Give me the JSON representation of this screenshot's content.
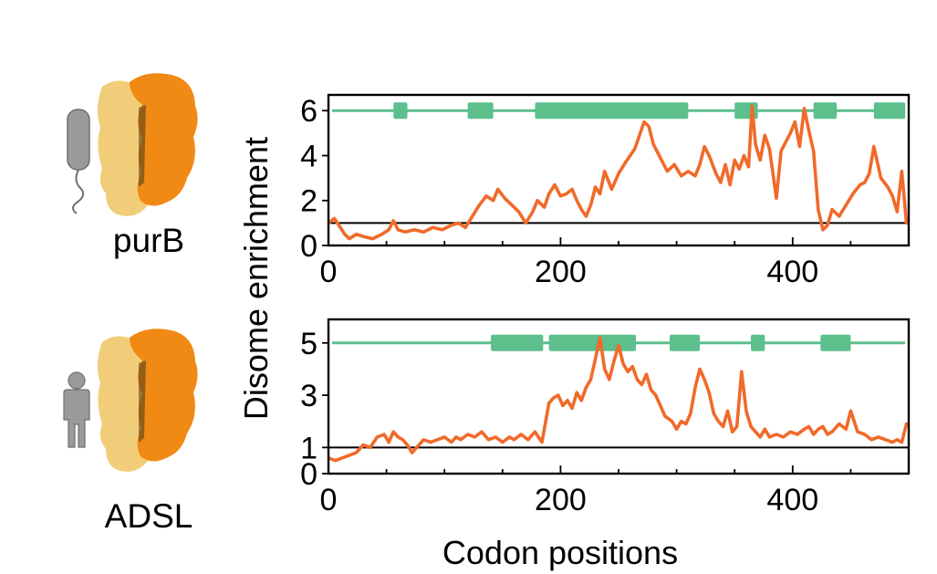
{
  "figure": {
    "ylabel": "Disome enrichment",
    "xlabel": "Codon positions",
    "colors": {
      "trace": "#f06a2a",
      "domain": "#5cbf8c",
      "baseline": "#000000",
      "protein_light": "#f2cd79",
      "protein_dark": "#f08a14",
      "silhouette": "#9a9a9a"
    }
  },
  "panels": [
    {
      "name": "purB",
      "organism_icon": "bacterium-icon"
    },
    {
      "name": "ADSL",
      "organism_icon": "human-icon"
    }
  ],
  "chart_data": [
    {
      "type": "line",
      "title": "purB",
      "xlabel": "",
      "ylabel": "Disome enrichment",
      "xlim": [
        0,
        500
      ],
      "ylim": [
        0,
        6.7
      ],
      "xticks": [
        0,
        200,
        400
      ],
      "yticks": [
        0,
        2,
        4,
        6
      ],
      "baseline": 1,
      "domain_track_y": 6,
      "domains": [
        [
          56,
          68
        ],
        [
          120,
          142
        ],
        [
          178,
          310
        ],
        [
          350,
          370
        ],
        [
          418,
          438
        ],
        [
          470,
          497
        ]
      ],
      "series": [
        {
          "x": [
            0,
            5,
            9,
            14,
            18,
            24,
            30,
            38,
            46,
            52,
            56,
            60,
            66,
            74,
            82,
            90,
            98,
            106,
            112,
            118,
            124,
            130,
            136,
            142,
            146,
            152,
            158,
            164,
            170,
            176,
            180,
            186,
            190,
            195,
            200,
            205,
            210,
            214,
            218,
            222,
            226,
            230,
            234,
            238,
            244,
            250,
            256,
            260,
            264,
            268,
            272,
            276,
            280,
            286,
            292,
            298,
            304,
            310,
            316,
            320,
            324,
            328,
            334,
            338,
            342,
            346,
            350,
            354,
            358,
            362,
            365,
            368,
            372,
            376,
            380,
            386,
            390,
            394,
            398,
            402,
            406,
            410,
            414,
            418,
            422,
            426,
            430,
            434,
            440,
            446,
            452,
            458,
            462,
            466,
            470,
            476,
            482,
            486,
            490,
            494,
            498
          ],
          "values": [
            1.0,
            1.2,
            0.9,
            0.5,
            0.3,
            0.5,
            0.4,
            0.3,
            0.5,
            0.7,
            1.1,
            0.7,
            0.6,
            0.7,
            0.6,
            0.8,
            0.7,
            0.9,
            1.0,
            0.8,
            1.3,
            1.8,
            2.2,
            2.0,
            2.5,
            2.1,
            1.8,
            1.5,
            1.0,
            1.5,
            2.0,
            1.7,
            2.3,
            2.7,
            2.2,
            2.3,
            2.5,
            2.0,
            1.6,
            1.3,
            1.8,
            2.6,
            2.3,
            3.3,
            2.5,
            3.2,
            3.7,
            4.0,
            4.3,
            4.9,
            5.5,
            5.3,
            4.5,
            3.9,
            3.3,
            3.6,
            3.1,
            3.3,
            3.1,
            3.6,
            4.4,
            4.0,
            3.2,
            2.8,
            3.6,
            2.7,
            3.8,
            3.4,
            4.0,
            3.5,
            6.2,
            4.5,
            3.8,
            4.9,
            4.3,
            2.1,
            4.2,
            4.6,
            5.0,
            5.5,
            4.4,
            6.1,
            5.1,
            4.2,
            1.6,
            0.7,
            0.9,
            1.6,
            1.3,
            1.8,
            2.3,
            2.7,
            2.8,
            3.2,
            4.4,
            3.0,
            2.6,
            2.2,
            1.5,
            3.3,
            1.0
          ]
        }
      ]
    },
    {
      "type": "line",
      "title": "ADSL",
      "xlabel": "Codon positions",
      "ylabel": "Disome enrichment",
      "xlim": [
        0,
        500
      ],
      "ylim": [
        0,
        5.9
      ],
      "xticks": [
        0,
        200,
        400
      ],
      "yticks": [
        0,
        1,
        3,
        5
      ],
      "baseline": 1,
      "domain_track_y": 5,
      "domains": [
        [
          140,
          185
        ],
        [
          190,
          265
        ],
        [
          294,
          320
        ],
        [
          364,
          376
        ],
        [
          424,
          450
        ]
      ],
      "series": [
        {
          "x": [
            0,
            6,
            12,
            18,
            24,
            30,
            36,
            42,
            48,
            52,
            56,
            60,
            64,
            68,
            72,
            76,
            82,
            88,
            94,
            100,
            106,
            110,
            114,
            120,
            126,
            132,
            138,
            144,
            150,
            156,
            160,
            166,
            172,
            178,
            184,
            190,
            194,
            198,
            202,
            206,
            210,
            214,
            218,
            222,
            226,
            230,
            234,
            238,
            242,
            246,
            250,
            254,
            258,
            262,
            266,
            270,
            274,
            278,
            282,
            286,
            290,
            296,
            300,
            304,
            308,
            312,
            316,
            320,
            324,
            328,
            332,
            336,
            340,
            344,
            348,
            352,
            356,
            360,
            364,
            368,
            372,
            376,
            380,
            386,
            392,
            398,
            404,
            410,
            414,
            418,
            422,
            426,
            430,
            434,
            440,
            446,
            450,
            456,
            462,
            468,
            474,
            480,
            486,
            490,
            494,
            498
          ],
          "values": [
            0.6,
            0.5,
            0.6,
            0.7,
            0.8,
            1.1,
            1.0,
            1.4,
            1.5,
            1.2,
            1.6,
            1.4,
            1.3,
            1.1,
            0.8,
            1.0,
            1.3,
            1.2,
            1.3,
            1.4,
            1.2,
            1.4,
            1.3,
            1.5,
            1.4,
            1.6,
            1.3,
            1.4,
            1.2,
            1.4,
            1.3,
            1.5,
            1.3,
            1.6,
            1.2,
            2.7,
            2.9,
            3.0,
            2.6,
            2.8,
            2.5,
            3.1,
            2.8,
            3.3,
            3.6,
            4.4,
            5.2,
            4.0,
            3.6,
            4.3,
            4.9,
            4.2,
            3.9,
            4.1,
            3.6,
            3.4,
            3.8,
            3.2,
            3.0,
            2.6,
            2.2,
            2.0,
            1.7,
            2.0,
            1.9,
            2.3,
            3.3,
            4.0,
            3.6,
            3.1,
            2.3,
            2.0,
            1.8,
            2.4,
            1.6,
            1.8,
            3.9,
            2.4,
            1.8,
            1.6,
            1.4,
            1.7,
            1.4,
            1.5,
            1.4,
            1.6,
            1.5,
            1.7,
            1.8,
            1.5,
            1.7,
            1.8,
            1.5,
            1.6,
            1.9,
            1.7,
            2.4,
            1.6,
            1.5,
            1.3,
            1.4,
            1.3,
            1.2,
            1.3,
            1.2,
            1.9
          ]
        }
      ]
    }
  ]
}
